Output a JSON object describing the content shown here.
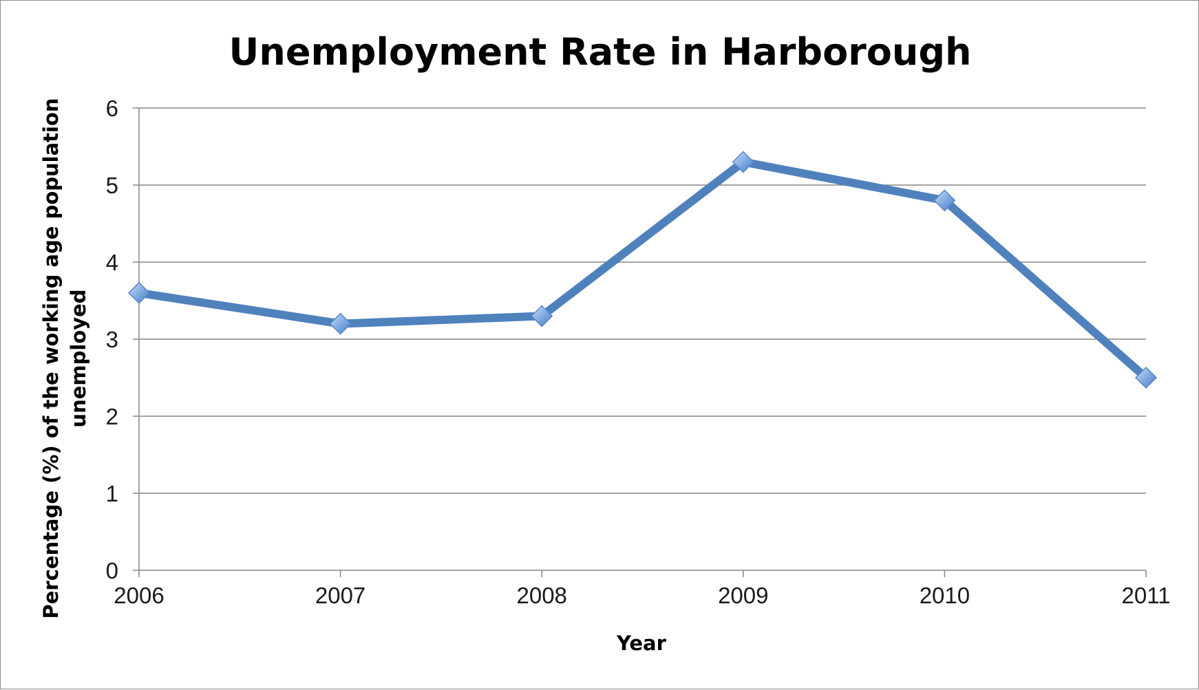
{
  "chart_data": {
    "type": "line",
    "title": "Unemployment Rate in Harborough",
    "xlabel": "Year",
    "ylabel_lines": [
      "Percentage (%) of the working age population",
      "unemployed"
    ],
    "categories": [
      "2006",
      "2007",
      "2008",
      "2009",
      "2010",
      "2011"
    ],
    "series": [
      {
        "values": [
          3.6,
          3.2,
          3.3,
          5.3,
          4.8,
          2.5
        ]
      }
    ],
    "ylim": [
      0,
      6
    ],
    "yticks": [
      "0",
      "1",
      "2",
      "3",
      "4",
      "5",
      "6"
    ],
    "grid": true,
    "legend": "none",
    "colors": {
      "line": "#4f81bd",
      "marker": "#7aa7e0",
      "grid": "#868686",
      "axis": "#868686"
    }
  }
}
